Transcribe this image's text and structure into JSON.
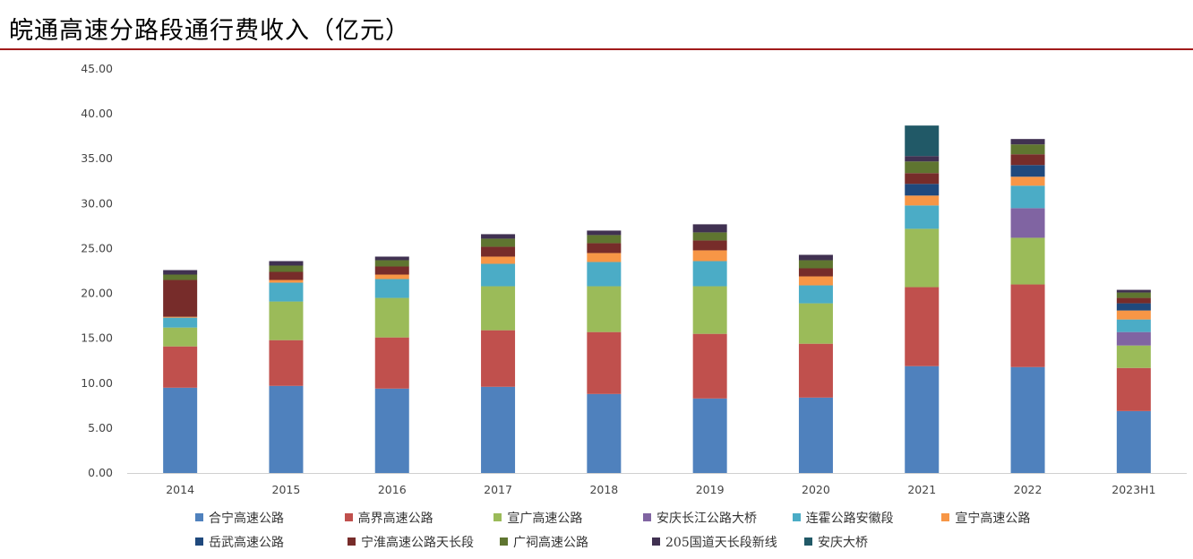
{
  "page": {
    "title": "皖通高速分路段通行费收入（亿元）"
  },
  "colors": {
    "title_rule": "#a11b1b"
  },
  "chart_data": {
    "type": "bar",
    "stacked": true,
    "categories": [
      "2014",
      "2015",
      "2016",
      "2017",
      "2018",
      "2019",
      "2020",
      "2021",
      "2022",
      "2023H1"
    ],
    "ylim": [
      0,
      45
    ],
    "yticks": [
      "0.00",
      "5.00",
      "10.00",
      "15.00",
      "20.00",
      "25.00",
      "30.00",
      "35.00",
      "40.00",
      "45.00"
    ],
    "grid": false,
    "legend": "bottom",
    "series": [
      {
        "name": "合宁高速公路",
        "color": "#4f81bd",
        "values": [
          9.5,
          9.7,
          9.4,
          9.6,
          8.8,
          8.3,
          8.4,
          11.9,
          11.8,
          6.9
        ]
      },
      {
        "name": "高界高速公路",
        "color": "#c0504d",
        "values": [
          4.6,
          5.1,
          5.7,
          6.3,
          6.9,
          7.2,
          6.0,
          8.8,
          9.2,
          4.8
        ]
      },
      {
        "name": "宣广高速公路",
        "color": "#9bbb59",
        "values": [
          2.1,
          4.3,
          4.4,
          4.9,
          5.1,
          5.3,
          4.5,
          6.5,
          5.2,
          2.5
        ]
      },
      {
        "name": "安庆长江公路大桥",
        "color": "#8064a2",
        "values": [
          0,
          0,
          0,
          0,
          0,
          0,
          0,
          0,
          3.3,
          1.5
        ]
      },
      {
        "name": "连霍公路安徽段",
        "color": "#4bacc6",
        "values": [
          1.1,
          2.1,
          2.1,
          2.5,
          2.7,
          2.8,
          2.0,
          2.6,
          2.5,
          1.4
        ]
      },
      {
        "name": "宣宁高速公路",
        "color": "#f79646",
        "values": [
          0.1,
          0.3,
          0.5,
          0.8,
          1.0,
          1.2,
          1.0,
          1.1,
          1.0,
          1.0
        ]
      },
      {
        "name": "岳武高速公路",
        "color": "#1f497d",
        "values": [
          0,
          0,
          0,
          0,
          0,
          0,
          0,
          1.3,
          1.3,
          0.8
        ]
      },
      {
        "name": "宁淮高速公路天长段",
        "color": "#772c2a",
        "values": [
          4.1,
          0.9,
          0.9,
          1.1,
          1.1,
          1.1,
          0.9,
          1.2,
          1.2,
          0.6
        ]
      },
      {
        "name": "广祠高速公路",
        "color": "#5f7530",
        "values": [
          0.6,
          0.7,
          0.7,
          0.9,
          0.9,
          0.9,
          0.9,
          1.3,
          1.1,
          0.6
        ]
      },
      {
        "name": "205国道天长段新线",
        "color": "#403151",
        "values": [
          0.5,
          0.5,
          0.4,
          0.5,
          0.5,
          0.9,
          0.6,
          0.6,
          0.6,
          0.3
        ]
      },
      {
        "name": "安庆大桥",
        "color": "#215967",
        "values": [
          0,
          0,
          0,
          0,
          0,
          0,
          0,
          3.4,
          0,
          0
        ]
      }
    ]
  }
}
